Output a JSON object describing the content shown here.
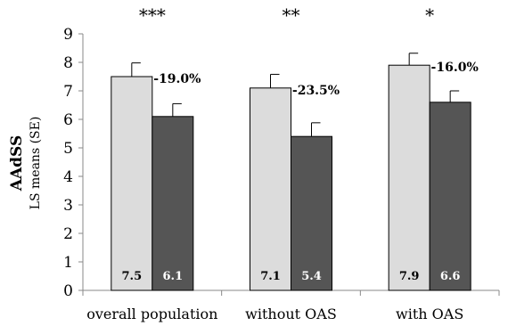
{
  "chart_data": {
    "type": "bar",
    "ylabel": "AAdSS",
    "ylabel_sub": "LS means (SE)",
    "ylim": [
      0,
      9
    ],
    "yticks": [
      0,
      1,
      2,
      3,
      4,
      5,
      6,
      7,
      8,
      9
    ],
    "grid": false,
    "categories": [
      "overall population",
      "without OAS",
      "with OAS"
    ],
    "series": [
      {
        "values": [
          7.5,
          7.1,
          7.9
        ],
        "errors": [
          0.48,
          0.48,
          0.42
        ],
        "labels": [
          "7.5",
          "7.1",
          "7.9"
        ],
        "color": "#dcdcdc",
        "label_color": "#000000"
      },
      {
        "values": [
          6.1,
          5.4,
          6.6
        ],
        "errors": [
          0.45,
          0.48,
          0.4
        ],
        "labels": [
          "6.1",
          "5.4",
          "6.6"
        ],
        "color": "#555555",
        "label_color": "#ffffff"
      }
    ],
    "percent_change": [
      "-19.0%",
      "-23.5%",
      "-16.0%"
    ],
    "significance": [
      "***",
      "**",
      "*"
    ]
  }
}
